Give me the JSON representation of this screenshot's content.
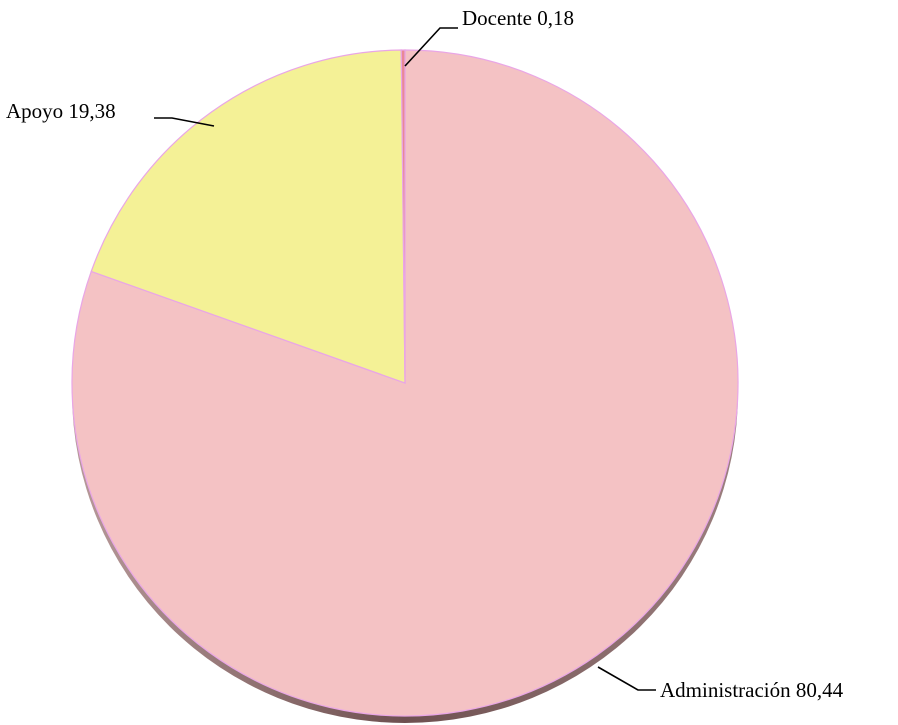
{
  "chart_data": {
    "type": "pie",
    "slices": [
      {
        "label": "Administración",
        "value": 80.44,
        "display": "Administración  80,44",
        "color": "#f4c2c4"
      },
      {
        "label": "Apoyo",
        "value": 19.38,
        "display": "Apoyo  19,38",
        "color": "#f4f196"
      },
      {
        "label": "Docente",
        "value": 0.18,
        "display": "Docente 0,18",
        "color": "#e98996"
      }
    ],
    "start": "12 o'clock",
    "direction": "clockwise",
    "style": "3d-shadow",
    "shadow_color": "#7a5d5d",
    "edge_color": "#e9a6e6",
    "legend": "none"
  }
}
